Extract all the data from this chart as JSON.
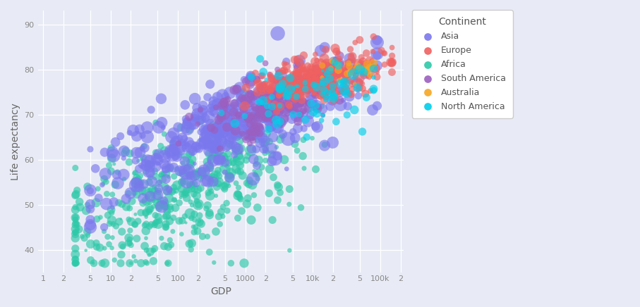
{
  "continents": [
    "Africa",
    "Asia",
    "South America",
    "Europe",
    "Australia",
    "North America"
  ],
  "colors": {
    "Asia": "#7B78EE",
    "Europe": "#F06060",
    "Africa": "#2DC9A8",
    "South America": "#9B5FC0",
    "Australia": "#F5A623",
    "North America": "#00CFEA"
  },
  "background_color": "#E8EBF5",
  "grid_color": "#ffffff",
  "xlabel": "GDP",
  "ylabel": "Life expectancy",
  "xlim_log": [
    -0.08,
    5.35
  ],
  "ylim": [
    35,
    93
  ],
  "yticks": [
    40,
    50,
    60,
    70,
    80,
    90
  ],
  "alpha": 0.65,
  "legend_title": "Continent",
  "legend_order": [
    "Asia",
    "Europe",
    "Africa",
    "South America",
    "Australia",
    "North America"
  ]
}
